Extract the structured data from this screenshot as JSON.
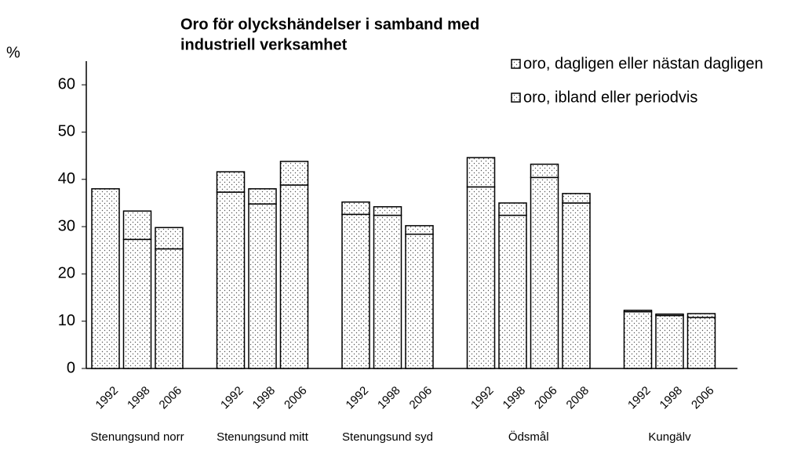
{
  "chart_data": {
    "type": "stacked_bar",
    "title": [
      "Oro för olyckshändelser i samband med",
      "industriell verksamhet"
    ],
    "y_label": "%",
    "groups": [
      {
        "name": "Stenungsund norr",
        "categories": [
          "1992",
          "1998",
          "2006"
        ]
      },
      {
        "name": "Stenungsund mitt",
        "categories": [
          "1992",
          "1998",
          "2006"
        ]
      },
      {
        "name": "Stenungsund syd",
        "categories": [
          "1992",
          "1998",
          "2006"
        ]
      },
      {
        "name": "Ödsmål",
        "categories": [
          "1992",
          "1998",
          "2006",
          "2008"
        ]
      },
      {
        "name": "Kungälv",
        "categories": [
          "1992",
          "1998",
          "2006"
        ]
      }
    ],
    "series": [
      {
        "name": "oro, ibland eller periodvis",
        "color": "#ffffff",
        "values": [
          38,
          27.3,
          25.3,
          37.3,
          34.8,
          38.8,
          32.6,
          32.4,
          28.4,
          38.4,
          32.4,
          40.4,
          35,
          12,
          11.2,
          10.8
        ]
      },
      {
        "name": "oro, dagligen eller nästan dagligen",
        "color": "#ffffff",
        "values": [
          0,
          6,
          4.5,
          4.3,
          3.2,
          5,
          2.6,
          1.8,
          1.8,
          6.2,
          2.6,
          2.8,
          2,
          0.3,
          0.3,
          0.8
        ]
      }
    ],
    "legend_order": [
      1,
      0
    ],
    "ylim": [
      0,
      65
    ],
    "yticks": [
      0,
      10,
      20,
      30,
      40,
      50,
      60
    ],
    "grid": false
  }
}
